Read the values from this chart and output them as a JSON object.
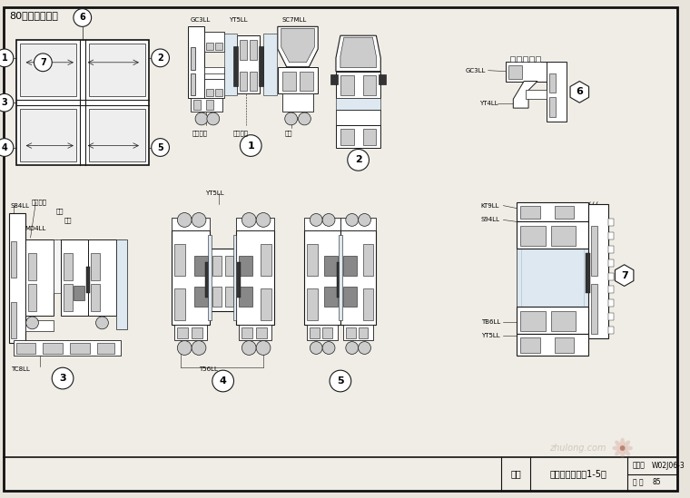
{
  "title": "80推拉窗（二）",
  "bg_color": "#e8e4dc",
  "paper_color": "#f0ede6",
  "border_color": "#000000",
  "footer_title": "图名",
  "footer_drawing_name": "参考窗节点图（1-5）",
  "footer_label1": "图集号",
  "footer_value1": "W02J06-3",
  "footer_label2": "页 次",
  "footer_value2": "85",
  "watermark_text": "zhulong.com",
  "annotations_node1_top": [
    "GC3LL",
    "SC7MLL",
    "YT5LL"
  ],
  "annotations_node1_bot": [
    "中空玻璃",
    "密封胶条",
    "钢衬"
  ],
  "annotations_node3": [
    "S84LL",
    "推拉窗棒",
    "窗纱",
    "毛条",
    "MD4LL",
    "TC8LL"
  ],
  "annotations_node4": [
    "YT5LL",
    "T56LL"
  ],
  "annotations_node6": [
    "GC3LL",
    "YT4LL"
  ],
  "annotations_node7": [
    "KT9LL",
    "S94LL",
    "TB6LL",
    "YT5LL"
  ],
  "line_color": "#1a1a1a",
  "fill_light": "#e0ddd8",
  "fill_dark": "#2a2a2a",
  "fill_mid": "#999999",
  "fill_white": "#ffffff"
}
